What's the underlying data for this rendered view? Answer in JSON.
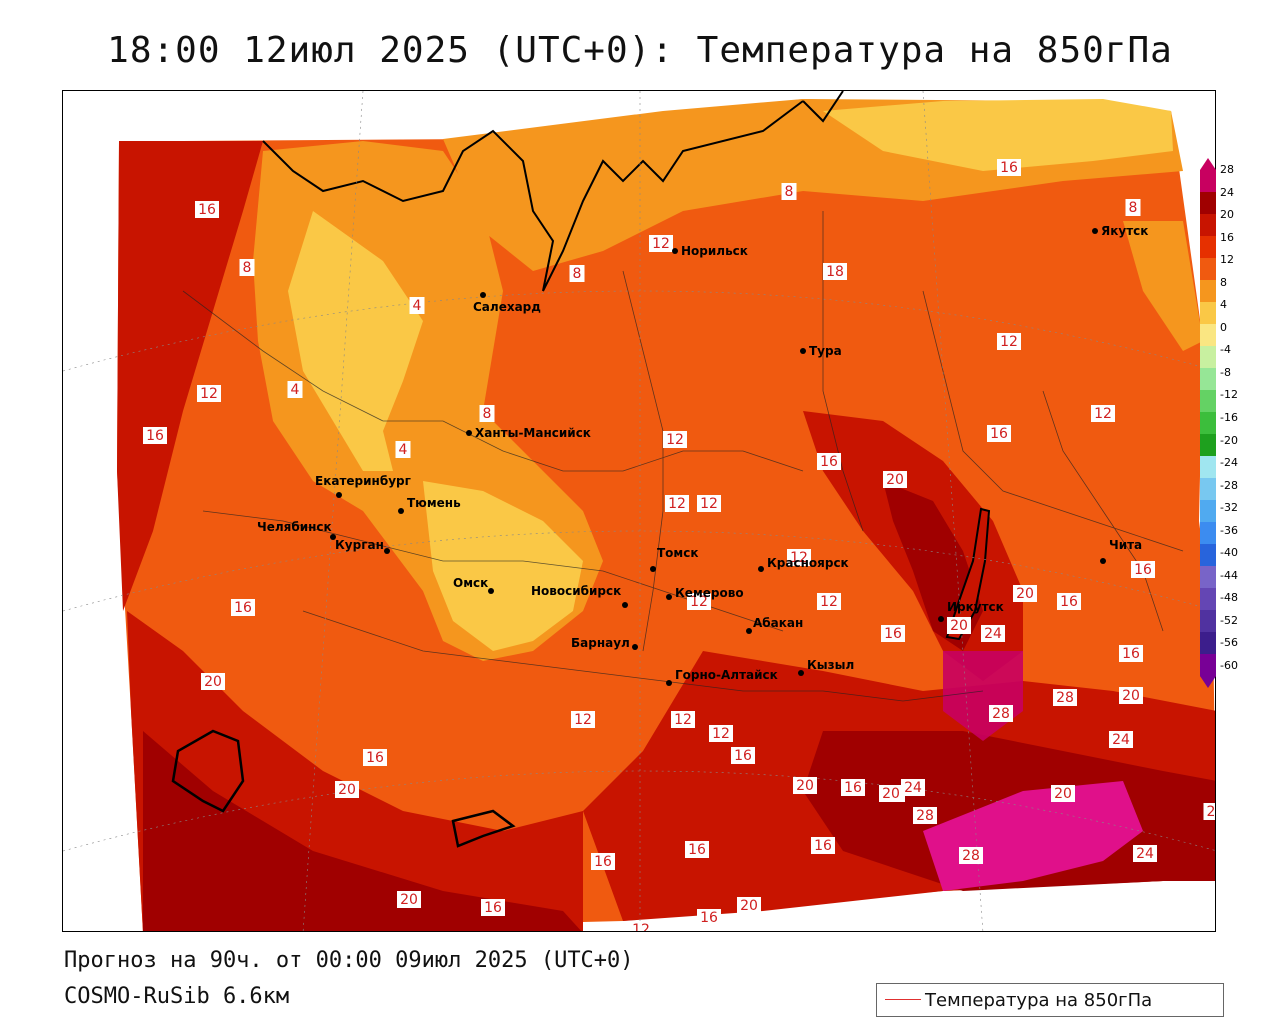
{
  "title": "18:00 12июл 2025 (UTC+0): Температура на 850гПа",
  "footer": {
    "forecast": "Прогноз на 90ч. от 00:00 09июл 2025 (UTC+0)",
    "model": "COSMO-RuSib 6.6км"
  },
  "legend": {
    "label": "Температура на 850гПа",
    "line_color": "#e03030"
  },
  "colorbar": {
    "labels": [
      "28",
      "24",
      "20",
      "16",
      "12",
      "8",
      "4",
      "0",
      "-4",
      "-8",
      "-12",
      "-16",
      "-20",
      "-24",
      "-28",
      "-32",
      "-36",
      "-40",
      "-44",
      "-48",
      "-52",
      "-56",
      "-60"
    ],
    "colors": [
      "#c80060",
      "#a00000",
      "#c81400",
      "#e63000",
      "#f05a10",
      "#f5961e",
      "#fac846",
      "#fae682",
      "#c8f0a0",
      "#96e696",
      "#64d264",
      "#3cbe3c",
      "#1ea01e",
      "#a0e6f0",
      "#78c8f0",
      "#50aaf0",
      "#3c8cf0",
      "#2864dc",
      "#7864c8",
      "#6446b4",
      "#5032a0",
      "#3c1e8c",
      "#780096"
    ]
  },
  "cities": [
    {
      "name": "Салехард"
    },
    {
      "name": "Норильск"
    },
    {
      "name": "Якутск"
    },
    {
      "name": "Тура"
    },
    {
      "name": "Ханты-Мансийск"
    },
    {
      "name": "Екатеринбург"
    },
    {
      "name": "Тюмень"
    },
    {
      "name": "Челябинск"
    },
    {
      "name": "Курган"
    },
    {
      "name": "Омск"
    },
    {
      "name": "Новосибирск"
    },
    {
      "name": "Томск"
    },
    {
      "name": "Кемерово"
    },
    {
      "name": "Красноярск"
    },
    {
      "name": "Абакан"
    },
    {
      "name": "Барнаул"
    },
    {
      "name": "Горно-Алтайск"
    },
    {
      "name": "Кызыл"
    },
    {
      "name": "Иркутск"
    },
    {
      "name": "Чита"
    }
  ],
  "isotherm_labels": [
    "16",
    "8",
    "4",
    "8",
    "12",
    "8",
    "16",
    "18",
    "4",
    "8",
    "12",
    "16",
    "4",
    "12",
    "8",
    "12",
    "12",
    "16",
    "16",
    "20",
    "12",
    "20",
    "16",
    "16",
    "12",
    "12",
    "16",
    "12",
    "12",
    "20",
    "24",
    "16",
    "20",
    "16",
    "20",
    "28",
    "16",
    "12",
    "12",
    "12",
    "16",
    "20",
    "16",
    "24",
    "20",
    "20",
    "24",
    "28",
    "28",
    "20",
    "16",
    "16",
    "16",
    "24",
    "28",
    "20",
    "16",
    "20",
    "12",
    "16",
    "20",
    "2"
  ]
}
